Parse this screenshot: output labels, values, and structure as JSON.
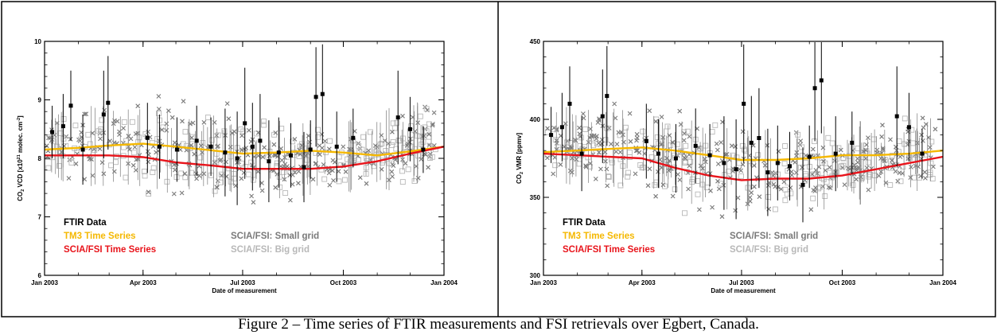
{
  "caption": "Figure 2 – Time series of FTIR measurements and FSI retrievals over Egbert, Canada.",
  "colors": {
    "ftir": "#000000",
    "tm3": "#f5b800",
    "scia_fsi": "#e8141b",
    "small_grid": "#7a7a7a",
    "big_grid": "#b8b8b8"
  },
  "chart_data": [
    {
      "type": "scatter",
      "title": "",
      "xlabel": "Date of measurement",
      "ylabel": "CO2 VCD [x10^21 molec. cm^-2]",
      "ylabel_main": "CO",
      "ylabel_sub": "2",
      "ylabel_rest": " VCD [x10",
      "ylabel_sup": "21",
      "ylabel_tail": " molec. cm",
      "ylabel_tail_sup": "-2",
      "ylabel_end": "]",
      "x_ticks": [
        "Jan 2003",
        "Apr 2003",
        "Jul 2003",
        "Oct 2003",
        "Jan 2004"
      ],
      "x_tick_days": [
        0,
        90,
        181,
        273,
        365
      ],
      "y_ticks": [
        6,
        7,
        8,
        9,
        10
      ],
      "ylim": [
        6,
        10
      ],
      "xlim": [
        "2003-01-01",
        "2004-01-01"
      ],
      "grid": false,
      "legend": [
        {
          "label": "FTIR Data",
          "color": "#000000"
        },
        {
          "label": "TM3 Time Series",
          "color": "#f5b800"
        },
        {
          "label": "SCIA/FSI Time Series",
          "color": "#e8141b"
        },
        {
          "label": "SCIA/FSI: Small grid",
          "color": "#7a7a7a"
        },
        {
          "label": "SCIA/FSI: Big grid",
          "color": "#b8b8b8"
        }
      ],
      "series": [
        {
          "name": "TM3 Time Series",
          "x": [
            "2003-01-01",
            "2003-02-01",
            "2003-03-01",
            "2003-04-01",
            "2003-05-01",
            "2003-06-01",
            "2003-07-01",
            "2003-08-01",
            "2003-09-01",
            "2003-10-01",
            "2003-11-01",
            "2003-12-01",
            "2004-01-01"
          ],
          "y": [
            8.15,
            8.18,
            8.22,
            8.25,
            8.2,
            8.14,
            8.08,
            8.1,
            8.13,
            8.1,
            8.05,
            8.12,
            8.2
          ]
        },
        {
          "name": "SCIA/FSI Time Series",
          "x": [
            "2003-01-01",
            "2003-02-01",
            "2003-03-01",
            "2003-04-01",
            "2003-05-01",
            "2003-06-01",
            "2003-07-01",
            "2003-08-01",
            "2003-09-01",
            "2003-10-01",
            "2003-11-01",
            "2003-12-01",
            "2004-01-01"
          ],
          "y": [
            8.05,
            8.05,
            8.05,
            8.02,
            7.93,
            7.88,
            7.82,
            7.82,
            7.82,
            7.86,
            7.95,
            8.08,
            8.2
          ]
        },
        {
          "name": "FTIR Data",
          "x": [
            "2003-01-08",
            "2003-01-18",
            "2003-01-25",
            "2003-02-05",
            "2003-02-24",
            "2003-02-28",
            "2003-04-05",
            "2003-04-16",
            "2003-05-02",
            "2003-05-20",
            "2003-06-02",
            "2003-06-15",
            "2003-06-26",
            "2003-07-03",
            "2003-07-10",
            "2003-07-17",
            "2003-07-25",
            "2003-08-03",
            "2003-08-14",
            "2003-08-26",
            "2003-09-01",
            "2003-09-06",
            "2003-09-12",
            "2003-09-25",
            "2003-10-10",
            "2003-11-20",
            "2003-12-01",
            "2003-12-13"
          ],
          "y": [
            8.45,
            8.55,
            8.9,
            8.15,
            8.75,
            8.95,
            8.35,
            8.2,
            8.15,
            8.3,
            8.2,
            8.1,
            8.0,
            8.6,
            8.2,
            8.3,
            7.95,
            8.1,
            8.05,
            7.85,
            8.15,
            9.05,
            9.1,
            8.2,
            8.35,
            8.7,
            8.5,
            8.15
          ],
          "err": [
            0.45,
            0.55,
            0.6,
            0.6,
            0.75,
            0.8,
            0.6,
            0.55,
            0.55,
            0.6,
            0.5,
            0.75,
            0.8,
            0.95,
            0.75,
            0.8,
            0.7,
            0.6,
            0.55,
            0.6,
            0.5,
            0.85,
            0.85,
            0.6,
            0.5,
            0.8,
            0.55,
            0.4
          ]
        }
      ]
    },
    {
      "type": "scatter",
      "title": "",
      "xlabel": "Date of measurement",
      "ylabel": "CO2 VMR [ppmv]",
      "ylabel_main": "CO",
      "ylabel_sub": "2",
      "ylabel_rest": " VMR [ppmv]",
      "x_ticks": [
        "Jan 2003",
        "Apr 2003",
        "Jul 2003",
        "Oct 2003",
        "Jan 2004"
      ],
      "x_tick_days": [
        0,
        90,
        181,
        273,
        365
      ],
      "y_ticks": [
        300,
        350,
        400,
        450
      ],
      "ylim": [
        300,
        450
      ],
      "xlim": [
        "2003-01-01",
        "2004-01-01"
      ],
      "grid": false,
      "legend": [
        {
          "label": "FTIR Data",
          "color": "#000000"
        },
        {
          "label": "TM3 Time Series",
          "color": "#f5b800"
        },
        {
          "label": "SCIA/FSI Time Series",
          "color": "#e8141b"
        },
        {
          "label": "SCIA/FSI: Small grid",
          "color": "#7a7a7a"
        },
        {
          "label": "SCIA/FSI: Big grid",
          "color": "#b8b8b8"
        }
      ],
      "series": [
        {
          "name": "TM3 Time Series",
          "x": [
            "2003-01-01",
            "2003-02-01",
            "2003-03-01",
            "2003-04-01",
            "2003-05-01",
            "2003-06-01",
            "2003-07-01",
            "2003-08-01",
            "2003-09-01",
            "2003-10-01",
            "2003-11-01",
            "2003-12-01",
            "2004-01-01"
          ],
          "y": [
            379,
            380,
            381,
            382,
            380,
            377,
            374,
            374,
            375,
            377,
            377,
            378,
            380
          ]
        },
        {
          "name": "SCIA/FSI Time Series",
          "x": [
            "2003-01-01",
            "2003-02-01",
            "2003-03-01",
            "2003-04-01",
            "2003-05-01",
            "2003-06-01",
            "2003-07-01",
            "2003-08-01",
            "2003-09-01",
            "2003-10-01",
            "2003-11-01",
            "2003-12-01",
            "2004-01-01"
          ],
          "y": [
            378,
            377,
            376,
            375,
            369,
            364,
            361,
            362,
            362,
            364,
            368,
            372,
            376
          ]
        },
        {
          "name": "FTIR Data",
          "x": [
            "2003-01-08",
            "2003-01-18",
            "2003-01-25",
            "2003-02-05",
            "2003-02-24",
            "2003-02-28",
            "2003-04-05",
            "2003-04-16",
            "2003-05-02",
            "2003-05-20",
            "2003-06-02",
            "2003-06-15",
            "2003-06-26",
            "2003-07-03",
            "2003-07-10",
            "2003-07-17",
            "2003-07-25",
            "2003-08-03",
            "2003-08-14",
            "2003-08-26",
            "2003-09-01",
            "2003-09-06",
            "2003-09-12",
            "2003-09-25",
            "2003-10-10",
            "2003-11-20",
            "2003-12-01",
            "2003-12-13"
          ],
          "y": [
            390,
            395,
            410,
            378,
            402,
            415,
            386,
            378,
            375,
            383,
            377,
            372,
            368,
            410,
            385,
            388,
            366,
            372,
            370,
            358,
            376,
            420,
            425,
            378,
            385,
            402,
            395,
            378
          ],
          "err": [
            18,
            22,
            24,
            24,
            30,
            32,
            24,
            22,
            22,
            24,
            20,
            30,
            32,
            38,
            30,
            32,
            28,
            24,
            22,
            24,
            20,
            34,
            34,
            24,
            20,
            32,
            22,
            16
          ]
        }
      ]
    }
  ]
}
